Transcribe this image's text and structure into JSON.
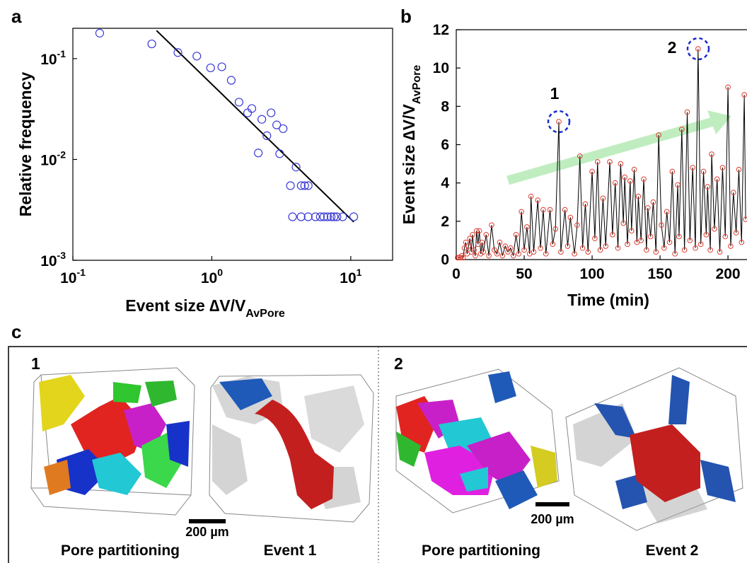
{
  "chart_data": [
    {
      "type": "scatter",
      "panel_label": "a",
      "x_label": "Event size ∆V/V",
      "x_label_sub": "AvPore",
      "y_label": "Relative frequency",
      "xscale": "log",
      "yscale": "log",
      "xlim": [
        0.1,
        20
      ],
      "ylim": [
        0.001,
        0.2
      ],
      "xticks": [
        {
          "value": 0.1,
          "label": "10",
          "sup": "-1"
        },
        {
          "value": 1,
          "label": "10",
          "sup": "0"
        },
        {
          "value": 10,
          "label": "10",
          "sup": "1"
        }
      ],
      "yticks": [
        {
          "value": 0.001,
          "label": "10",
          "sup": "-3"
        },
        {
          "value": 0.01,
          "label": "10",
          "sup": "-2"
        },
        {
          "value": 0.1,
          "label": "10",
          "sup": "-1"
        }
      ],
      "color": "#3a3ad6",
      "x": [
        0.156,
        0.37,
        0.57,
        0.78,
        0.98,
        1.18,
        1.38,
        1.57,
        1.81,
        1.94,
        2.29,
        2.67,
        2.93,
        3.26,
        2.49,
        2.16,
        3.08,
        4.04,
        3.68,
        4.4,
        4.66,
        4.94,
        3.81,
        4.39,
        4.94,
        5.57,
        6.04,
        6.41,
        6.8,
        7.22,
        7.57,
        7.95,
        8.74,
        10.5
      ],
      "values": [
        0.179,
        0.14,
        0.115,
        0.106,
        0.081,
        0.083,
        0.061,
        0.037,
        0.029,
        0.032,
        0.025,
        0.029,
        0.022,
        0.0202,
        0.0172,
        0.0116,
        0.0114,
        0.0084,
        0.0055,
        0.0055,
        0.0055,
        0.0055,
        0.0027,
        0.0027,
        0.0027,
        0.0027,
        0.0027,
        0.0027,
        0.0027,
        0.0027,
        0.0027,
        0.0027,
        0.0027,
        0.0027
      ],
      "fit": {
        "x": [
          0.4,
          10.5
        ],
        "values": [
          0.19,
          0.0024
        ],
        "color": "#000000"
      }
    },
    {
      "type": "line",
      "panel_label": "b",
      "x_label": "Time (min)",
      "y_label": "Event size ∆V/V",
      "y_label_sub": "AvPore",
      "xlim": [
        0,
        214
      ],
      "ylim": [
        0,
        12
      ],
      "xticks": [
        0,
        50,
        100,
        150,
        200
      ],
      "yticks": [
        0,
        2,
        4,
        6,
        8,
        10,
        12
      ],
      "color": "#000000",
      "marker_color": "#e03a2e",
      "annotations": [
        "1",
        "2"
      ],
      "x": [
        1,
        2,
        3,
        4,
        5,
        6,
        7,
        8,
        9,
        10,
        11,
        12,
        13,
        14,
        15,
        16,
        17,
        18,
        19,
        20,
        22,
        24,
        26,
        28,
        30,
        32,
        34,
        36,
        38,
        40,
        42,
        44,
        46,
        48,
        50,
        52,
        54,
        55,
        57,
        60,
        62,
        64,
        66,
        69,
        71,
        73,
        75.5,
        77,
        80,
        82,
        84,
        87,
        89,
        91,
        93,
        95,
        97,
        100,
        102,
        104,
        106,
        108,
        110,
        113,
        115,
        117,
        119,
        121,
        123,
        124,
        126,
        128,
        129,
        131,
        133,
        134,
        136,
        138,
        140,
        141,
        143,
        145,
        147,
        149,
        151,
        153,
        155,
        157,
        159,
        161,
        163,
        164,
        166,
        168,
        170,
        172,
        174,
        176,
        178,
        180,
        182,
        184,
        185,
        187,
        188,
        190,
        192,
        194,
        196,
        198,
        200,
        202,
        204,
        206,
        208,
        210,
        212,
        213
      ],
      "values": [
        0.1,
        0.1,
        0.1,
        0.2,
        0.1,
        0.6,
        0.9,
        0.3,
        0.7,
        1.1,
        0.4,
        1.3,
        0.5,
        0.2,
        1.5,
        0.8,
        1.5,
        0.3,
        0.9,
        0.4,
        1.3,
        0.2,
        1.8,
        0.5,
        0.3,
        0.9,
        0.2,
        0.7,
        0.4,
        0.6,
        0.2,
        1.3,
        0.3,
        2.5,
        0.5,
        1.7,
        0.3,
        3.3,
        0.4,
        3.1,
        0.6,
        2.6,
        0.3,
        2.6,
        0.8,
        1.6,
        7.2,
        0.4,
        2.6,
        0.7,
        2.2,
        0.3,
        1.8,
        5.4,
        0.6,
        2.9,
        0.4,
        4.6,
        1.1,
        5.1,
        0.5,
        3.2,
        0.7,
        5.1,
        1.3,
        4.0,
        0.6,
        5.0,
        1.9,
        4.3,
        0.8,
        4.1,
        1.5,
        4.7,
        0.9,
        3.3,
        1.0,
        4.2,
        0.5,
        2.7,
        1.2,
        3.0,
        0.4,
        6.5,
        1.8,
        0.6,
        2.5,
        0.9,
        4.6,
        0.3,
        3.9,
        1.2,
        6.8,
        0.5,
        7.7,
        1.0,
        4.8,
        0.6,
        11.0,
        0.8,
        4.6,
        1.3,
        3.8,
        0.5,
        5.5,
        1.6,
        4.2,
        0.4,
        4.8,
        1.2,
        9.0,
        0.7,
        3.5,
        1.4,
        4.7,
        0.9,
        8.6,
        2.1
      ]
    }
  ],
  "panel_c": {
    "panel_label": "c",
    "groups": [
      {
        "label": "1",
        "captions": [
          "Pore partitioning",
          "Event 1"
        ],
        "scale_bar": "200 µm"
      },
      {
        "label": "2",
        "captions": [
          "Pore partitioning",
          "Event 2"
        ],
        "scale_bar": "200 µm"
      }
    ]
  }
}
